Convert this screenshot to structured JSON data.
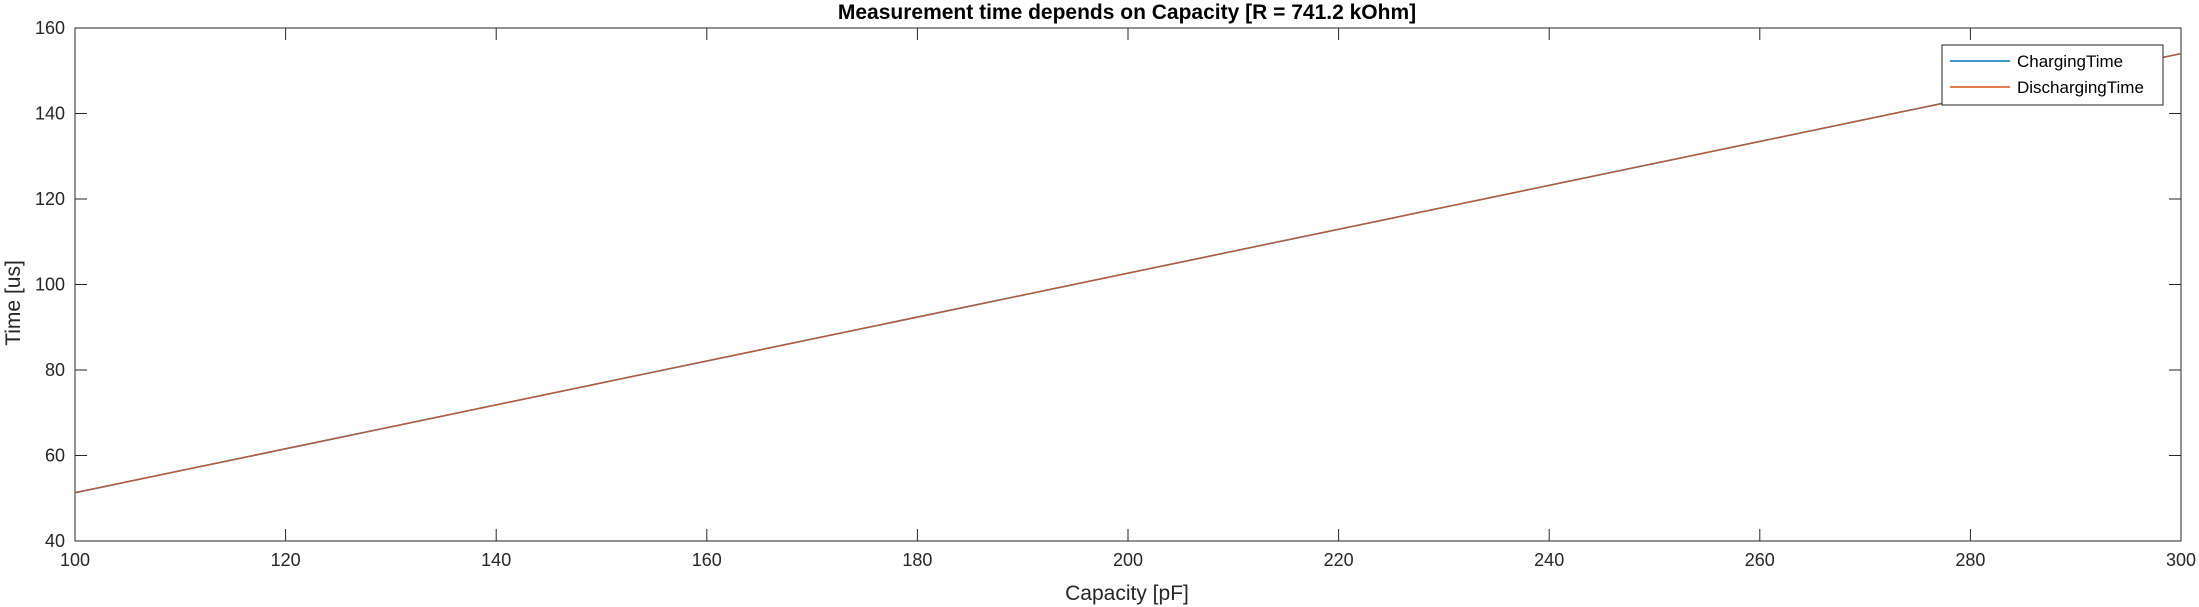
{
  "colors": {
    "background": "#ffffff",
    "axes": "#262626",
    "charging": "#0072BD",
    "discharging": "#D95319"
  },
  "chart_data": {
    "type": "line",
    "title": "Measurement time depends on Capacity  [R = 741.2 kOhm]",
    "xlabel": "Capacity [pF]",
    "ylabel": "Time [us]",
    "xlim": [
      100,
      300
    ],
    "ylim": [
      40,
      160
    ],
    "xticks": [
      100,
      120,
      140,
      160,
      180,
      200,
      220,
      240,
      260,
      280,
      300
    ],
    "yticks": [
      40,
      60,
      80,
      100,
      120,
      140,
      160
    ],
    "grid": false,
    "box": true,
    "legend_position": "top-right",
    "series": [
      {
        "name": "ChargingTime",
        "color": "#0072BD",
        "x": [
          100,
          300
        ],
        "y": [
          51.3,
          154.0
        ]
      },
      {
        "name": "DischargingTime",
        "color": "#D95319",
        "x": [
          100,
          300
        ],
        "y": [
          51.3,
          154.0
        ]
      }
    ]
  }
}
